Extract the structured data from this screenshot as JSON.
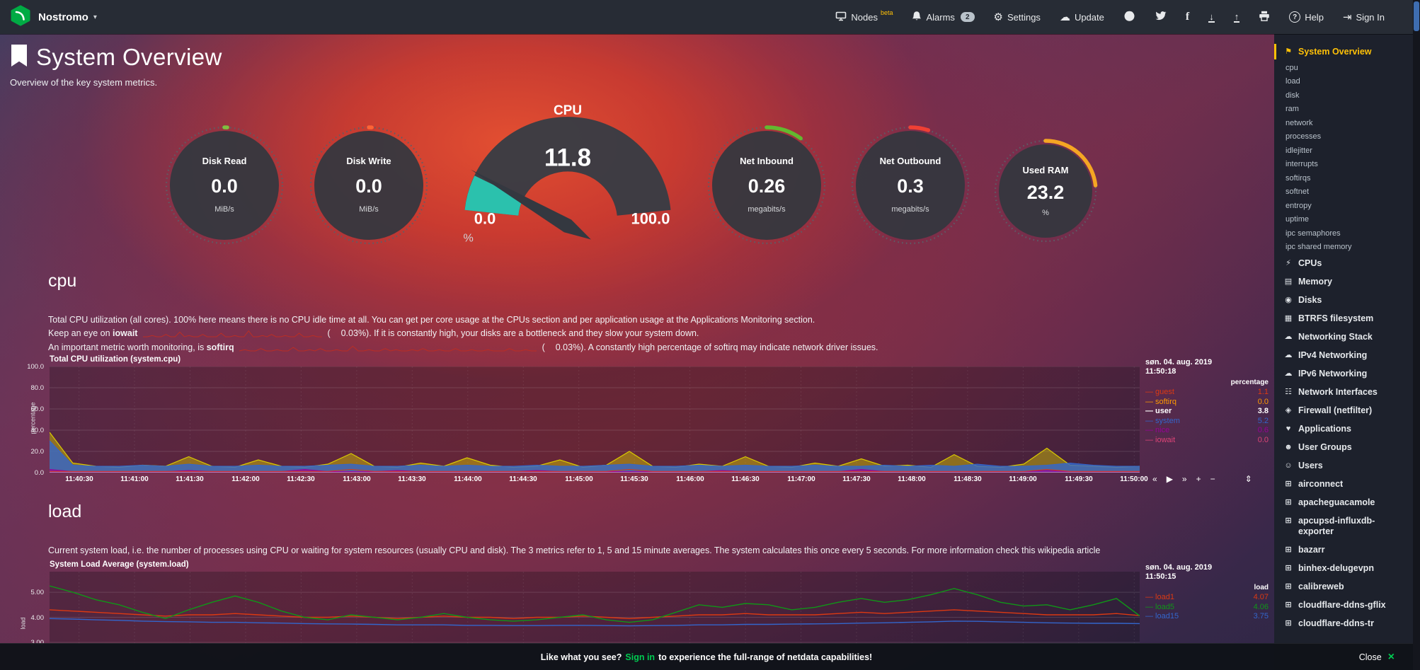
{
  "navbar": {
    "brand": "Nostromo",
    "nodes_label": "Nodes",
    "nodes_badge": "beta",
    "alarms_label": "Alarms",
    "alarms_count": "2",
    "settings_label": "Settings",
    "update_label": "Update",
    "help_label": "Help",
    "signin_label": "Sign In"
  },
  "header": {
    "title": "System Overview",
    "subtitle": "Overview of the key system metrics."
  },
  "gauges": [
    {
      "label": "Disk Read",
      "value": "0.0",
      "unit": "MiB/s",
      "color": "#7fbf3f",
      "fraction": 0.008
    },
    {
      "label": "Disk Write",
      "value": "0.0",
      "unit": "MiB/s",
      "color": "#ff6434",
      "fraction": 0.008
    },
    {
      "label": "Net Inbound",
      "value": "0.26",
      "unit": "megabits/s",
      "color": "#63b92f",
      "fraction": 0.1
    },
    {
      "label": "Net Outbound",
      "value": "0.3",
      "unit": "megabits/s",
      "color": "#ef4034",
      "fraction": 0.05
    },
    {
      "label": "Used RAM",
      "value": "23.2",
      "unit": "%",
      "color": "#f5a623",
      "fraction": 0.232
    }
  ],
  "cpu_gauge": {
    "title": "CPU",
    "value": "11.8",
    "min": "0.0",
    "max": "100.0",
    "unit": "%",
    "fraction": 0.118,
    "color": "#2bc1ad"
  },
  "sections": {
    "cpu": {
      "heading": "cpu",
      "p1": "Total CPU utilization (all cores). 100% here means there is no CPU idle time at all. You can get per core usage at the CPUs section and per application usage at the Applications Monitoring section.",
      "p2_prefix": "Keep an eye on ",
      "p2_bold": "iowait",
      "p2_paren": "(",
      "p2_tail": "0.03%). If it is constantly high, your disks are a bottleneck and they slow your system down.",
      "p3_prefix": "An important metric worth monitoring, is ",
      "p3_bold": "softirq",
      "p3_paren": "(",
      "p3_tail": "0.03%). A constantly high percentage of softirq may indicate network driver issues."
    },
    "load": {
      "heading": "load",
      "p1": "Current system load, i.e. the number of processes using CPU or waiting for system resources (usually CPU and disk). The 3 metrics refer to 1, 5 and 15 minute averages. The system calculates this once every 5 seconds. For more information check this wikipedia article"
    }
  },
  "sparklines": {
    "iowait": [
      0,
      0,
      1,
      0,
      0,
      2,
      0,
      0,
      4,
      0,
      1,
      0,
      0,
      2,
      0,
      0,
      0,
      3,
      0,
      0,
      1,
      0,
      0,
      5,
      0,
      0,
      1,
      0,
      2,
      0,
      0,
      1,
      0,
      0,
      3,
      0,
      0,
      1,
      0,
      0
    ],
    "softirq": [
      0,
      1,
      0,
      0,
      2,
      0,
      0,
      1,
      0,
      0,
      3,
      0,
      0,
      1,
      0,
      2,
      0,
      0,
      1,
      0,
      0,
      4,
      0,
      0,
      1,
      0,
      0,
      2,
      0,
      1,
      0,
      0,
      1,
      0,
      2,
      0,
      0,
      1,
      0,
      0,
      2,
      0,
      0,
      1,
      0,
      0,
      1,
      0,
      0,
      0,
      2,
      0,
      0,
      1,
      0,
      0
    ]
  },
  "chart_data": [
    {
      "id": "cpu",
      "type": "area",
      "title": "Total CPU utilization (system.cpu)",
      "ylabel": "percentage",
      "legend_date": "søn. 04. aug. 2019",
      "legend_time": "11:50:18",
      "legend_unit": "percentage",
      "ylim": [
        0,
        100
      ],
      "ytick_vals": [
        100,
        80,
        60,
        40,
        20,
        0
      ],
      "ytick_labels": [
        "100.0",
        "80.0",
        "60.0",
        "40.0",
        "20.0",
        "0.0"
      ],
      "xticks": [
        "11:40:30",
        "11:41:00",
        "11:41:30",
        "11:42:00",
        "11:42:30",
        "11:43:00",
        "11:43:30",
        "11:44:00",
        "11:44:30",
        "11:45:00",
        "11:45:30",
        "11:46:00",
        "11:46:30",
        "11:47:00",
        "11:47:30",
        "11:48:00",
        "11:48:30",
        "11:49:00",
        "11:49:30",
        "11:50:00"
      ],
      "series": [
        {
          "name": "guest",
          "color": "#dc3912",
          "value": "1.1"
        },
        {
          "name": "softirq",
          "color": "#ff9900",
          "value": "0.0"
        },
        {
          "name": "user",
          "color": "#d9ca00",
          "value": "3.8",
          "highlight": true
        },
        {
          "name": "system",
          "color": "#3366cc",
          "value": "5.2"
        },
        {
          "name": "nice",
          "color": "#990099",
          "value": "0.6"
        },
        {
          "name": "iowait",
          "color": "#dd4477",
          "value": "0.0"
        }
      ],
      "points": {
        "user": [
          38,
          9,
          6,
          5,
          7,
          6,
          15,
          6,
          5,
          12,
          6,
          5,
          8,
          18,
          6,
          5,
          9,
          6,
          14,
          7,
          5,
          6,
          12,
          5,
          7,
          20,
          6,
          5,
          8,
          6,
          15,
          6,
          5,
          9,
          6,
          13,
          6,
          7,
          5,
          17,
          6,
          5,
          8,
          23,
          7,
          6,
          5,
          6
        ],
        "system": [
          30,
          7,
          6,
          6,
          7,
          6,
          8,
          6,
          6,
          7,
          6,
          6,
          7,
          8,
          6,
          6,
          7,
          6,
          7,
          6,
          6,
          7,
          6,
          6,
          7,
          8,
          6,
          6,
          7,
          6,
          7,
          6,
          6,
          7,
          6,
          6,
          7,
          6,
          7,
          6,
          8,
          6,
          6,
          7,
          9,
          7,
          6,
          6
        ],
        "nice": [
          3,
          1,
          1,
          1,
          1,
          1,
          2,
          1,
          1,
          1,
          1,
          3,
          1,
          1,
          1,
          2,
          1,
          1,
          1,
          1,
          1,
          2,
          1,
          1,
          1,
          1,
          1,
          1,
          1,
          2,
          1,
          1,
          1,
          1,
          1,
          3,
          1,
          1,
          1,
          1,
          1,
          1,
          1,
          2,
          1,
          1,
          1,
          1
        ],
        "guest": [
          1.1,
          1.1,
          1.1,
          1.1,
          1.1,
          1.1,
          1.1,
          1.1,
          1.1,
          1.1,
          1.1,
          1.1,
          1.1,
          3,
          1.1,
          1.1,
          1.1,
          1.1,
          1.1,
          1.1,
          1.1,
          1.1,
          1.1,
          1.1,
          1.1,
          3,
          1.1,
          1.1,
          1.1,
          1.1,
          1.1,
          1.1,
          1.1,
          1.1,
          1.1,
          1.1,
          1.1,
          1.1,
          1.1,
          1.1,
          1.1,
          1.1,
          1.1,
          3,
          1.1,
          1.1,
          1.1,
          1.1
        ]
      }
    },
    {
      "id": "load",
      "type": "line",
      "title": "System Load Average (system.load)",
      "ylabel": "load",
      "legend_date": "søn. 04. aug. 2019",
      "legend_time": "11:50:15",
      "legend_unit": "load",
      "ylim": [
        1.59,
        5.82
      ],
      "ytick_vals": [
        5,
        4,
        3
      ],
      "ytick_labels": [
        "5.00",
        "4.00",
        "3.00"
      ],
      "series": [
        {
          "name": "load1",
          "color": "#dc3912",
          "value": "4.07"
        },
        {
          "name": "load5",
          "color": "#109618",
          "value": "4.06"
        },
        {
          "name": "load15",
          "color": "#3366cc",
          "value": "3.75"
        }
      ],
      "points": {
        "load5": [
          5.25,
          5.0,
          4.7,
          4.5,
          4.2,
          3.95,
          4.3,
          4.6,
          4.85,
          4.6,
          4.25,
          4.0,
          3.9,
          4.1,
          4.0,
          3.9,
          4.0,
          4.15,
          4.0,
          3.9,
          3.85,
          3.9,
          4.0,
          4.1,
          3.9,
          3.8,
          3.9,
          4.2,
          4.5,
          4.4,
          4.55,
          4.5,
          4.3,
          4.4,
          4.6,
          4.75,
          4.6,
          4.7,
          4.9,
          5.15,
          4.9,
          4.6,
          4.45,
          4.5,
          4.3,
          4.5,
          4.75,
          4.06
        ],
        "load1": [
          4.3,
          4.25,
          4.2,
          4.15,
          4.1,
          4.05,
          4.1,
          4.1,
          4.15,
          4.1,
          4.05,
          4.0,
          4.0,
          4.05,
          4.0,
          3.95,
          4.0,
          4.05,
          4.0,
          4.0,
          3.95,
          4.0,
          4.0,
          4.05,
          4.0,
          3.95,
          4.0,
          4.05,
          4.1,
          4.1,
          4.15,
          4.1,
          4.1,
          4.1,
          4.15,
          4.2,
          4.15,
          4.2,
          4.25,
          4.3,
          4.25,
          4.2,
          4.15,
          4.1,
          4.1,
          4.1,
          4.15,
          4.07
        ],
        "load15": [
          3.95,
          3.93,
          3.9,
          3.88,
          3.85,
          3.83,
          3.82,
          3.8,
          3.8,
          3.78,
          3.77,
          3.75,
          3.74,
          3.73,
          3.72,
          3.7,
          3.7,
          3.7,
          3.68,
          3.68,
          3.67,
          3.67,
          3.68,
          3.68,
          3.67,
          3.66,
          3.67,
          3.68,
          3.7,
          3.7,
          3.72,
          3.72,
          3.73,
          3.74,
          3.75,
          3.77,
          3.78,
          3.8,
          3.82,
          3.85,
          3.84,
          3.82,
          3.8,
          3.78,
          3.77,
          3.76,
          3.76,
          3.75
        ]
      }
    }
  ],
  "sidebar": {
    "items": [
      {
        "label": "System Overview",
        "icon": "bookmark",
        "selected": true,
        "children": [
          "cpu",
          "load",
          "disk",
          "ram",
          "network",
          "processes",
          "idlejitter",
          "interrupts",
          "softirqs",
          "softnet",
          "entropy",
          "uptime",
          "ipc semaphores",
          "ipc shared memory"
        ]
      },
      {
        "label": "CPUs",
        "icon": "bolt"
      },
      {
        "label": "Memory",
        "icon": "memory"
      },
      {
        "label": "Disks",
        "icon": "hdd"
      },
      {
        "label": "BTRFS filesystem",
        "icon": "folder"
      },
      {
        "label": "Networking Stack",
        "icon": "cloud"
      },
      {
        "label": "IPv4 Networking",
        "icon": "cloud"
      },
      {
        "label": "IPv6 Networking",
        "icon": "cloud"
      },
      {
        "label": "Network Interfaces",
        "icon": "sitemap"
      },
      {
        "label": "Firewall (netfilter)",
        "icon": "shield"
      },
      {
        "label": "Applications",
        "icon": "heart"
      },
      {
        "label": "User Groups",
        "icon": "users"
      },
      {
        "label": "Users",
        "icon": "user"
      },
      {
        "label": "airconnect",
        "icon": "grid"
      },
      {
        "label": "apacheguacamole",
        "icon": "grid"
      },
      {
        "label": "apcupsd-influxdb-exporter",
        "icon": "grid"
      },
      {
        "label": "bazarr",
        "icon": "grid"
      },
      {
        "label": "binhex-delugevpn",
        "icon": "grid"
      },
      {
        "label": "calibreweb",
        "icon": "grid"
      },
      {
        "label": "cloudflare-ddns-gflix",
        "icon": "grid"
      },
      {
        "label": "cloudflare-ddns-tr",
        "icon": "grid"
      }
    ]
  },
  "footer": {
    "message_prefix": "Like what you see?",
    "signin": "Sign in",
    "message_suffix": "to experience the full-range of netdata capabilities!",
    "close": "Close"
  }
}
